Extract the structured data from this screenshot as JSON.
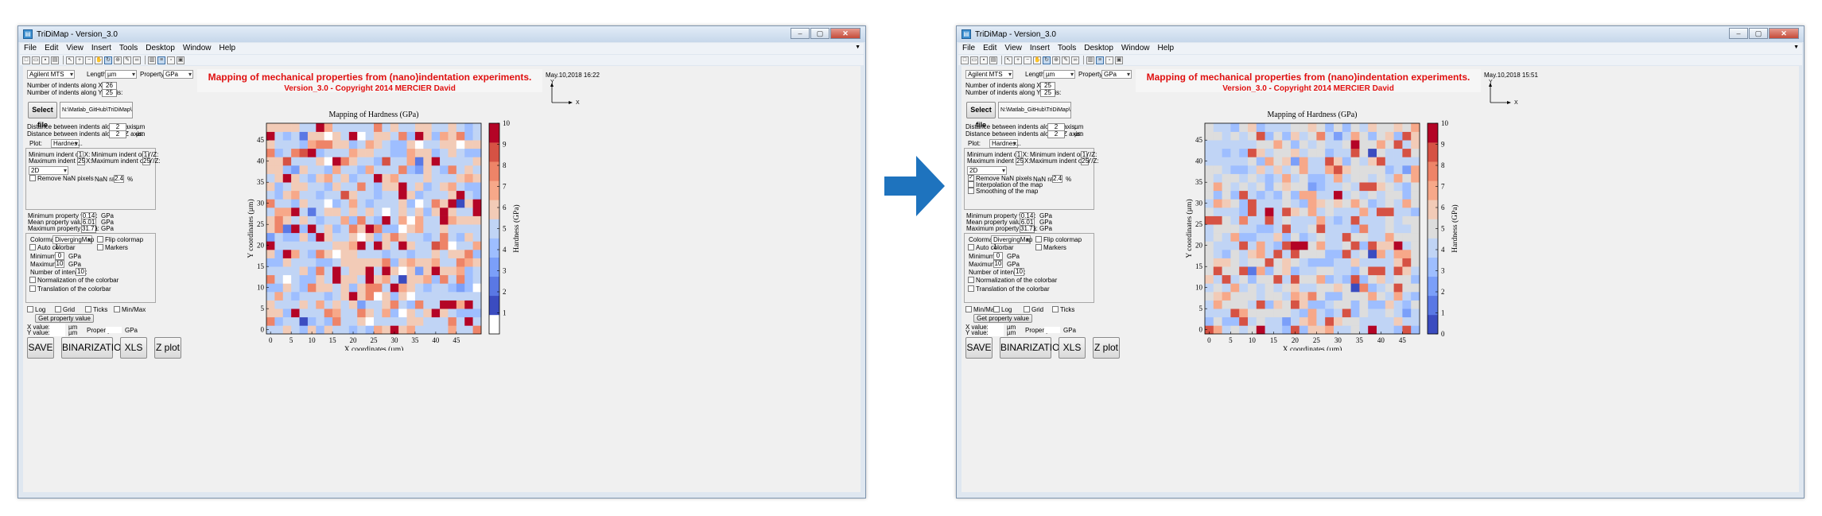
{
  "arrow_color": "#1e73be",
  "windows": [
    {
      "title": "TriDiMap - Version_3.0",
      "menu": [
        "File",
        "Edit",
        "View",
        "Insert",
        "Tools",
        "Desktop",
        "Window",
        "Help"
      ],
      "header": {
        "title": "Mapping of mechanical properties from (nano)indentation experiments.",
        "version": "Version_3.0 - Copyright 2014 MERCIER David"
      },
      "date": "May.10,2018 16:22",
      "axes_indicator": {
        "y": "Y",
        "x": "X"
      },
      "instrument": "Agilent MTS",
      "length_label": "Length:",
      "length_unit": "µm",
      "property_label": "Property:",
      "property_unit": "GPa",
      "n_indents_x_label": "Number of indents along X axis:",
      "n_indents_x": "26",
      "n_indents_y_label": "Number of indents along Y/Z axis:",
      "n_indents_y": "25",
      "select_file": "Select file",
      "file_path": "N:\\Matlab_GitHub\\TriDiMap\\data_in",
      "dist_x_label": "Distance between indents along X axis:",
      "dist_x": "2",
      "dist_x_unit": "µm",
      "dist_y_label": "Distance between indents along Y/Z axis:",
      "dist_y": "2",
      "dist_y_unit": "µm",
      "plot_label": "Plot:",
      "plot_value": "Hardnes...",
      "min_indent_x_label": "Minimum indent on X:",
      "min_indent_x": "1",
      "max_indent_x_label": "Maximum indent on X:",
      "max_indent_x": "25",
      "min_indent_y_label": "Minimum indent on Y/Z:",
      "min_indent_y": "1",
      "max_indent_y_label": "Maximum indent on Y/Z:",
      "max_indent_y": "25",
      "dim": "2D",
      "nan_options": [
        {
          "label": "Remove NaN pixels",
          "checked": false
        }
      ],
      "nan_ratio_label": "NaN ratio:",
      "nan_ratio": "2.4",
      "nan_ratio_unit": "%",
      "min_prop_label": "Minimum property value:",
      "min_prop": "0.14",
      "min_prop_unit": "GPa",
      "mean_prop_label": "Mean property value:",
      "mean_prop": "6.01",
      "mean_prop_unit": "GPa",
      "max_prop_label": "Maximum property value:",
      "max_prop": "31.71",
      "max_prop_unit": "GPa",
      "colormap_label": "Colormap:",
      "colormap": "DivergingMap 1",
      "flip_colormap": "Flip colormap",
      "markers": "Markers",
      "auto_colorbar": "Auto colorbar",
      "minimum_label": "Minimum",
      "minimum": "0",
      "minimum_unit": "GPa",
      "maximum_label": "Maximum",
      "maximum": "10",
      "maximum_unit": "GPa",
      "intervals_label": "Number of intervals:",
      "intervals": "10",
      "normalization": "Normalization of the colorbar",
      "translation": "Translation of the colorbar",
      "bottom_checks": [
        "Log",
        "Grid",
        "Ticks",
        "Min/Max"
      ],
      "get_property": "Get property value",
      "x_value_label": "X value:",
      "x_value_unit": "µm",
      "y_value_label": "Y value:",
      "y_value_unit": "µm",
      "property_value_label": "Property:",
      "property_value_unit": "GPa",
      "buttons": [
        "SAVE",
        "BINARIZATION",
        "XLS",
        "Z plot"
      ]
    },
    {
      "title": "TriDiMap - Version_3.0",
      "menu": [
        "File",
        "Edit",
        "View",
        "Insert",
        "Tools",
        "Desktop",
        "Window",
        "Help"
      ],
      "header": {
        "title": "Mapping of mechanical properties from (nano)indentation experiments.",
        "version": "Version_3.0 - Copyright 2014 MERCIER David"
      },
      "date": "May.10,2018 15:51",
      "axes_indicator": {
        "y": "Y",
        "x": "X"
      },
      "instrument": "Agilent MTS",
      "length_label": "Length:",
      "length_unit": "µm",
      "property_label": "Property:",
      "property_unit": "GPa",
      "n_indents_x_label": "Number of indents along X axis:",
      "n_indents_x": "25",
      "n_indents_y_label": "Number of indents along Y/Z axis:",
      "n_indents_y": "25",
      "select_file": "Select file",
      "file_path": "N:\\Matlab_GitHub\\TriDiMap\\data_in",
      "dist_x_label": "Distance between indents along X axis:",
      "dist_x": "2",
      "dist_x_unit": "µm",
      "dist_y_label": "Distance between indents along Y/Z axis:",
      "dist_y": "2",
      "dist_y_unit": "µm",
      "plot_label": "Plot:",
      "plot_value": "Hardnes...",
      "min_indent_x_label": "Minimum indent on X:",
      "min_indent_x": "1",
      "max_indent_x_label": "Maximum indent on X:",
      "max_indent_x": "25",
      "min_indent_y_label": "Minimum indent on Y/Z:",
      "min_indent_y": "1",
      "max_indent_y_label": "Maximum indent on Y/Z:",
      "max_indent_y": "25",
      "dim": "2D",
      "nan_options": [
        {
          "label": "Remove NaN pixels",
          "checked": true
        },
        {
          "label": "Interpolation of the map",
          "checked": false
        },
        {
          "label": "Smoothing of the map",
          "checked": false
        }
      ],
      "nan_ratio_label": "NaN ratio:",
      "nan_ratio": "2.4",
      "nan_ratio_unit": "%",
      "min_prop_label": "Minimum property value:",
      "min_prop": "0.14",
      "min_prop_unit": "GPa",
      "mean_prop_label": "Mean property value:",
      "mean_prop": "6.01",
      "mean_prop_unit": "GPa",
      "max_prop_label": "Maximum property value:",
      "max_prop": "31.71",
      "max_prop_unit": "GPa",
      "colormap_label": "Colormap:",
      "colormap": "DivergingMap 1",
      "flip_colormap": "Flip colormap",
      "markers": "Markers",
      "auto_colorbar": "Auto colorbar",
      "minimum_label": "Minimum",
      "minimum": "0",
      "minimum_unit": "GPa",
      "maximum_label": "Maximum",
      "maximum": "10",
      "maximum_unit": "GPa",
      "intervals_label": "Number of intervals:",
      "intervals": "10",
      "normalization": "Normalization of the colorbar",
      "translation": "Translation of the colorbar",
      "bottom_checks": [
        "Min/Max",
        "Log",
        "Grid",
        "Ticks"
      ],
      "get_property": "Get property value",
      "x_value_label": "X value:",
      "x_value_unit": "µm",
      "y_value_label": "Y value:",
      "y_value_unit": "µm",
      "property_value_label": "Property",
      "property_value_unit": "GPa",
      "buttons": [
        "SAVE",
        "BINARIZATION",
        "XLS",
        "Z plot"
      ]
    }
  ],
  "chart_data": [
    {
      "type": "heatmap",
      "title": "Mapping of Hardness (GPa)",
      "xlabel": "X coordinates (µm)",
      "ylabel": "Y coordinates (µm)",
      "colorbar_label": "Hardness (GPa)",
      "xticks": [
        0,
        5,
        10,
        15,
        20,
        25,
        30,
        35,
        40,
        45
      ],
      "yticks": [
        0,
        5,
        10,
        15,
        20,
        25,
        30,
        35,
        40,
        45
      ],
      "xlim": [
        -1,
        51
      ],
      "ylim": [
        -1,
        49
      ],
      "cbar_ticks": [
        1,
        2,
        3,
        4,
        5,
        6,
        7,
        8,
        9,
        10
      ],
      "cbar_range": [
        0,
        10
      ],
      "cbar_colors": [
        "#ffffff",
        "#3b4cc0",
        "#5a78e4",
        "#7b9ff9",
        "#9ebeff",
        "#c0d4f5",
        "#f2cbb7",
        "#f7a889",
        "#ee8468",
        "#d65244",
        "#b40426"
      ],
      "has_nan": true
    },
    {
      "type": "heatmap",
      "title": "Mapping of Hardness (GPa)",
      "xlabel": "X coordinates (µm)",
      "ylabel": "Y coordinates (µm)",
      "colorbar_label": "Hardness (GPa)",
      "xticks": [
        0,
        5,
        10,
        15,
        20,
        25,
        30,
        35,
        40,
        45
      ],
      "yticks": [
        0,
        5,
        10,
        15,
        20,
        25,
        30,
        35,
        40,
        45
      ],
      "xlim": [
        -1,
        49
      ],
      "ylim": [
        -1,
        49
      ],
      "cbar_ticks": [
        0,
        1,
        2,
        3,
        4,
        5,
        6,
        7,
        8,
        9,
        10
      ],
      "cbar_range": [
        0,
        10
      ],
      "cbar_colors": [
        "#3b4cc0",
        "#5a78e4",
        "#7b9ff9",
        "#9ebeff",
        "#c0d4f5",
        "#dddddd",
        "#f2cbb7",
        "#f7a889",
        "#ee8468",
        "#d65244",
        "#b40426"
      ],
      "has_nan": false
    }
  ]
}
